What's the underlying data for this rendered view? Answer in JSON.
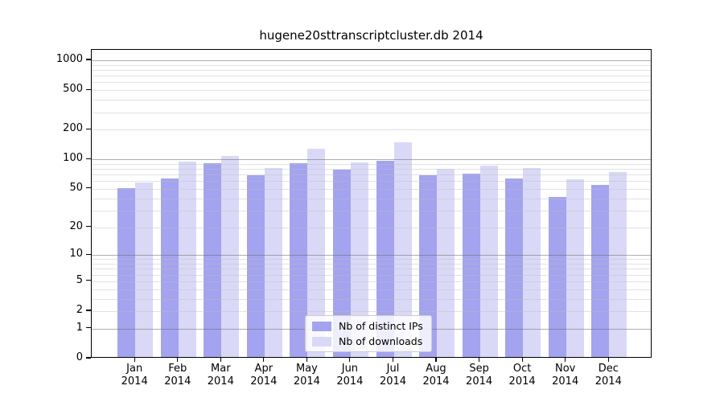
{
  "title": "hugene20sttranscriptcluster.db 2014",
  "chart_data": {
    "type": "bar",
    "title": "hugene20sttranscriptcluster.db 2014",
    "categories": [
      "Jan",
      "Feb",
      "Mar",
      "Apr",
      "May",
      "Jun",
      "Jul",
      "Aug",
      "Sep",
      "Oct",
      "Nov",
      "Dec"
    ],
    "x_year_label": "2014",
    "series": [
      {
        "name": "Nb of distinct IPs",
        "color": "#a3a3ef",
        "values": [
          49,
          61,
          88,
          66,
          88,
          75,
          94,
          66,
          69,
          62,
          40,
          53
        ]
      },
      {
        "name": "Nb of downloads",
        "color": "#d9d9f7",
        "values": [
          56,
          92,
          104,
          78,
          123,
          90,
          144,
          77,
          83,
          78,
          60,
          72
        ]
      }
    ],
    "y_ticks": [
      0,
      1,
      2,
      5,
      10,
      20,
      50,
      100,
      200,
      500,
      1000
    ],
    "y_scale": "log1p",
    "ylim": [
      0,
      1000
    ],
    "xlabel": "",
    "ylabel": "",
    "grid": true,
    "legend_position": "lower-center-inside",
    "colors": {
      "background": "#ffffff",
      "major_grid": "#b0b0b0",
      "minor_grid": "#e6e6e6",
      "spine": "#000000",
      "legend_border": "#cccccc"
    }
  }
}
